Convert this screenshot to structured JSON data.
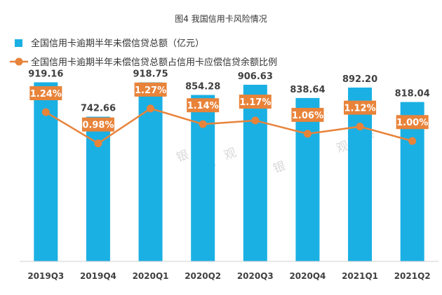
{
  "chart_data": {
    "type": "bar",
    "title": "图4 我国信用卡风险情况",
    "categories": [
      "2019Q3",
      "2019Q4",
      "2020Q1",
      "2020Q2",
      "2020Q3",
      "2020Q4",
      "2021Q1",
      "2021Q2"
    ],
    "series": [
      {
        "name": "全国信用卡逾期半年未偿信贷总额（亿元）",
        "type": "bar",
        "axis": "left",
        "values": [
          919.16,
          742.66,
          918.75,
          854.28,
          906.63,
          838.64,
          892.2,
          818.04
        ],
        "labels": [
          "919.16",
          "742.66",
          "918.75",
          "854.28",
          "906.63",
          "838.64",
          "892.20",
          "818.04"
        ]
      },
      {
        "name": "全国信用卡逾期半年未偿信贷总额占信用卡应偿信贷余额比例",
        "type": "line",
        "axis": "right",
        "values": [
          1.24,
          0.98,
          1.27,
          1.14,
          1.17,
          1.06,
          1.12,
          1.0
        ],
        "labels": [
          "1.24%",
          "0.98%",
          "1.27%",
          "1.14%",
          "1.17%",
          "1.06%",
          "1.12%",
          "1.00%"
        ]
      }
    ],
    "ylim": [
      0,
      1000
    ],
    "y2lim": [
      0,
      1.7
    ],
    "legend": "top-left",
    "grid": false,
    "watermark": [
      "银",
      "数",
      "观",
      "卡"
    ],
    "colors": {
      "bar": "#1ab0e4",
      "line": "#e8833a",
      "label_bg": "#e8833a",
      "label_text": "#ffffff",
      "text": "#404040",
      "axis": "#d0d0d0"
    }
  }
}
